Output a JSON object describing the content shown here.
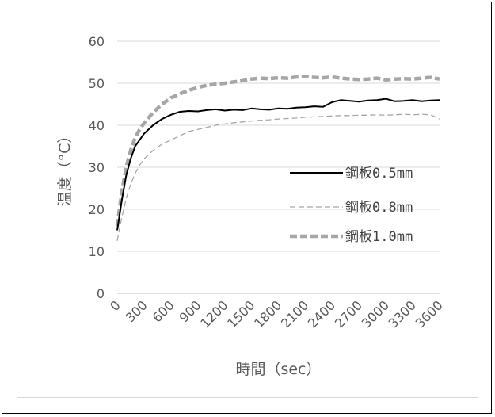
{
  "chart_data": {
    "type": "line",
    "xlabel": "時間（sec）",
    "ylabel": "温度（°C）",
    "xlim": [
      0,
      3600
    ],
    "ylim": [
      0,
      60
    ],
    "x_ticks": [
      0,
      300,
      600,
      900,
      1200,
      1500,
      1800,
      2100,
      2400,
      2700,
      3000,
      3300,
      3600
    ],
    "y_ticks": [
      0,
      10,
      20,
      30,
      40,
      50,
      60
    ],
    "grid": "horizontal",
    "legend_position": "right",
    "series": [
      {
        "name": "鋼板0.5mm",
        "style": "solid",
        "color": "#000000",
        "x": [
          0,
          50,
          100,
          150,
          200,
          250,
          300,
          400,
          500,
          600,
          700,
          800,
          900,
          1000,
          1100,
          1200,
          1300,
          1400,
          1500,
          1600,
          1700,
          1800,
          1900,
          2000,
          2100,
          2200,
          2300,
          2400,
          2500,
          2600,
          2700,
          2800,
          2900,
          3000,
          3100,
          3200,
          3300,
          3400,
          3500,
          3600
        ],
        "y": [
          15,
          22,
          28,
          32,
          35,
          36.5,
          38,
          40,
          41.5,
          42.5,
          43.2,
          43.4,
          43.3,
          43.6,
          43.8,
          43.5,
          43.7,
          43.6,
          44.0,
          43.8,
          43.7,
          44.0,
          43.9,
          44.2,
          44.3,
          44.5,
          44.4,
          45.5,
          46.0,
          45.8,
          45.6,
          45.9,
          46.0,
          46.3,
          45.7,
          45.8,
          46.0,
          45.7,
          45.9,
          46.0
        ]
      },
      {
        "name": "鋼板0.8mm",
        "style": "dashed",
        "color": "#a6a6a6",
        "x": [
          0,
          50,
          100,
          150,
          200,
          250,
          300,
          400,
          500,
          600,
          700,
          800,
          900,
          1000,
          1100,
          1200,
          1300,
          1400,
          1500,
          1600,
          1700,
          1800,
          1900,
          2000,
          2100,
          2200,
          2300,
          2400,
          2500,
          2600,
          2700,
          2800,
          2900,
          3000,
          3100,
          3200,
          3300,
          3400,
          3500,
          3600
        ],
        "y": [
          12.5,
          18,
          22.5,
          26,
          28.5,
          30.5,
          32,
          34,
          35.5,
          36.5,
          37.5,
          38.5,
          39,
          39.5,
          40,
          40.3,
          40.6,
          40.8,
          41,
          41.2,
          41.3,
          41.5,
          41.6,
          41.7,
          41.9,
          42,
          42.1,
          42.2,
          42.3,
          42.3,
          42.4,
          42.4,
          42.5,
          42.4,
          42.5,
          42.6,
          42.5,
          42.6,
          42.5,
          41.5
        ]
      },
      {
        "name": "鋼板1.0mm",
        "style": "dashed-thick",
        "color": "#a6a6a6",
        "x": [
          0,
          50,
          100,
          150,
          200,
          250,
          300,
          400,
          500,
          600,
          700,
          800,
          900,
          1000,
          1100,
          1200,
          1300,
          1400,
          1500,
          1600,
          1700,
          1800,
          1900,
          2000,
          2100,
          2200,
          2300,
          2400,
          2500,
          2600,
          2700,
          2800,
          2900,
          3000,
          3100,
          3200,
          3300,
          3400,
          3500,
          3600
        ],
        "y": [
          16,
          24,
          30,
          34,
          37,
          39,
          40.5,
          43,
          45,
          46.5,
          47.5,
          48.3,
          49,
          49.5,
          49.8,
          50,
          50.3,
          50.6,
          51,
          51.2,
          51.1,
          51.3,
          51.2,
          51.5,
          51.6,
          51.4,
          51.3,
          51.5,
          51.2,
          51.0,
          50.9,
          51.0,
          51.2,
          50.8,
          51.0,
          51.1,
          51.0,
          51.2,
          51.4,
          51.0
        ]
      }
    ]
  }
}
